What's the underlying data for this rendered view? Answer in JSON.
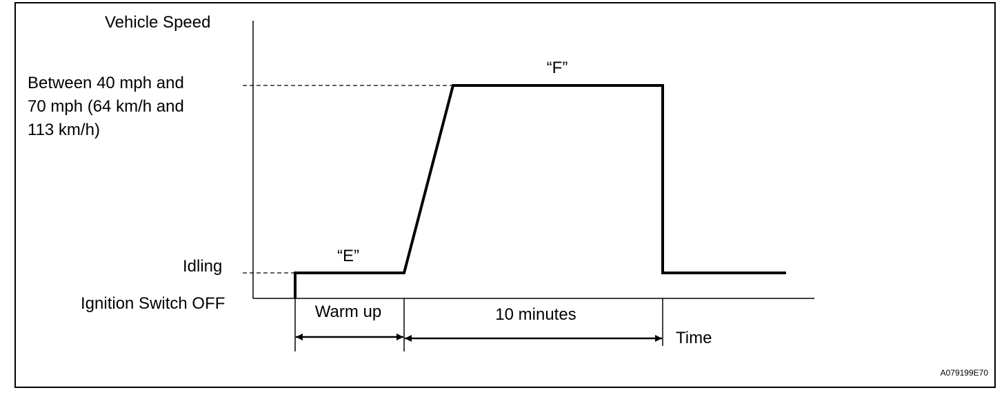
{
  "labels": {
    "y_axis_title": "Vehicle Speed",
    "high_speed": [
      "Between 40 mph and",
      "70 mph (64 km/h and",
      "113 km/h)"
    ],
    "idling": "Idling",
    "ignition_off": "Ignition Switch OFF",
    "phase_e": "“E”",
    "phase_f": "“F”",
    "warm_up": "Warm up",
    "duration": "10 minutes",
    "time": "Time",
    "figure_id": "A079199E70"
  }
}
